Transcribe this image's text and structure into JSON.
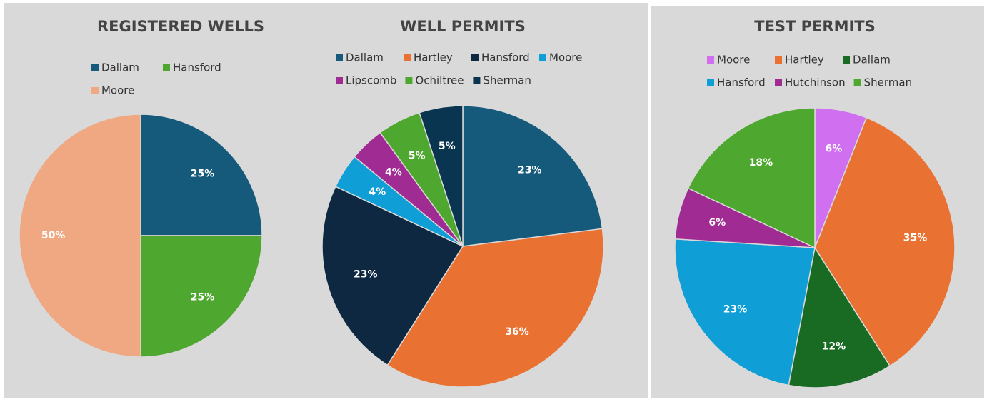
{
  "chart_data": [
    {
      "type": "pie",
      "title": "REGISTERED WELLS",
      "categories": [
        "Dallam",
        "Hansford",
        "Moore"
      ],
      "values": [
        25,
        25,
        50
      ],
      "value_labels": [
        "25%",
        "25%",
        "50%"
      ],
      "colors": [
        "#155a7a",
        "#4ea72e",
        "#f0a883"
      ]
    },
    {
      "type": "pie",
      "title": "WELL PERMITS",
      "categories": [
        "Dallam",
        "Hartley",
        "Hansford",
        "Moore",
        "Lipscomb",
        "Ochiltree",
        "Sherman"
      ],
      "values": [
        23,
        36,
        23,
        4,
        4,
        5,
        5
      ],
      "value_labels": [
        "23%",
        "36%",
        "23%",
        "4%",
        "4%",
        "5%",
        "5%"
      ],
      "colors": [
        "#155a7a",
        "#e97132",
        "#0e2841",
        "#0f9ed5",
        "#a02b93",
        "#4ea72e",
        "#0a3550"
      ]
    },
    {
      "type": "pie",
      "title": "TEST PERMITS",
      "categories": [
        "Moore",
        "Hartley",
        "Dallam",
        "Hansford",
        "Hutchinson",
        "Sherman"
      ],
      "values": [
        6,
        35,
        12,
        23,
        6,
        18
      ],
      "value_labels": [
        "6%",
        "35%",
        "12%",
        "23%",
        "6%",
        "18%"
      ],
      "colors": [
        "#d06ff0",
        "#e97132",
        "#196b24",
        "#0f9ed5",
        "#a02b93",
        "#4ea72e"
      ]
    }
  ]
}
